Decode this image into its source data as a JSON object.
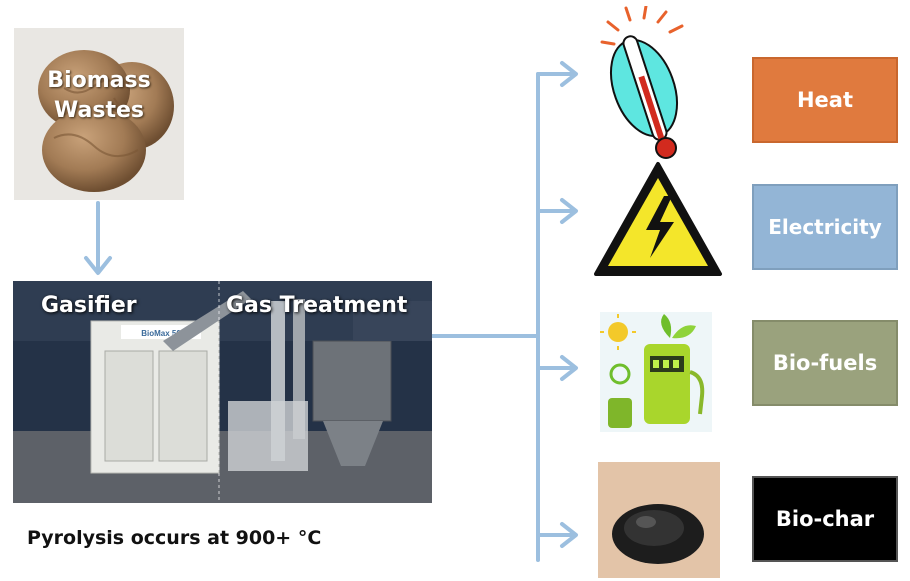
{
  "source": {
    "line1": "Biomass",
    "line2": "Wastes"
  },
  "plant": {
    "left_label": "Gasifier",
    "right_label": "Gas Treatment",
    "machine_brand": "BioMax 50"
  },
  "caption": "Pyrolysis occurs at 900+ °C",
  "outputs": [
    {
      "label": "Heat",
      "icon": "thermometer-icon",
      "color": "#e07a3e"
    },
    {
      "label": "Electricity",
      "icon": "high-voltage-icon",
      "color": "#93b5d6"
    },
    {
      "label": "Bio-fuels",
      "icon": "green-fuel-pump-icon",
      "color": "#9aa27d"
    },
    {
      "label": "Bio-char",
      "icon": "biochar-powder-icon",
      "color": "#000000"
    }
  ],
  "arrow_color": "#9cbfdf"
}
